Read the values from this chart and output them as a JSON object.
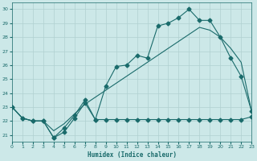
{
  "xlabel": "Humidex (Indice chaleur)",
  "xlim": [
    0,
    23
  ],
  "ylim": [
    20.5,
    30.5
  ],
  "xticks": [
    0,
    1,
    2,
    3,
    4,
    5,
    6,
    7,
    8,
    9,
    10,
    11,
    12,
    13,
    14,
    15,
    16,
    17,
    18,
    19,
    20,
    21,
    22,
    23
  ],
  "yticks": [
    21,
    22,
    23,
    24,
    25,
    26,
    27,
    28,
    29,
    30
  ],
  "bg_color": "#cce8e8",
  "grid_color": "#b0d0d0",
  "line_color": "#1a6b6b",
  "line1_x": [
    0,
    1,
    2,
    3,
    4,
    5,
    6,
    7,
    8,
    9,
    10,
    11,
    12,
    13,
    14,
    15,
    16,
    17,
    18,
    19,
    20,
    21,
    22,
    23
  ],
  "line1_y": [
    23.0,
    22.2,
    22.0,
    22.0,
    20.8,
    21.2,
    22.2,
    23.3,
    22.1,
    22.1,
    22.1,
    22.1,
    22.1,
    22.1,
    22.1,
    22.1,
    22.1,
    22.1,
    22.1,
    22.1,
    22.1,
    22.1,
    22.1,
    22.3
  ],
  "line2_x": [
    0,
    1,
    2,
    3,
    4,
    5,
    6,
    7,
    8,
    9,
    10,
    11,
    12,
    13,
    14,
    15,
    16,
    17,
    18,
    19,
    20,
    21,
    22,
    23
  ],
  "line2_y": [
    23.0,
    22.2,
    22.0,
    22.0,
    20.8,
    21.5,
    22.4,
    23.5,
    22.1,
    24.5,
    25.9,
    26.0,
    26.7,
    26.5,
    28.8,
    29.0,
    29.4,
    30.0,
    29.2,
    29.2,
    28.0,
    26.5,
    25.2,
    22.7
  ],
  "line3_x": [
    0,
    1,
    2,
    3,
    4,
    5,
    6,
    7,
    8,
    9,
    10,
    11,
    12,
    13,
    14,
    15,
    16,
    17,
    18,
    19,
    20,
    21,
    22,
    23
  ],
  "line3_y": [
    23.0,
    22.2,
    22.0,
    22.0,
    21.3,
    21.8,
    22.5,
    23.2,
    23.7,
    24.2,
    24.7,
    25.2,
    25.7,
    26.2,
    26.7,
    27.2,
    27.7,
    28.2,
    28.7,
    28.5,
    28.0,
    27.2,
    26.2,
    22.7
  ],
  "marker": "D",
  "markersize": 2.5,
  "linewidth": 0.8
}
